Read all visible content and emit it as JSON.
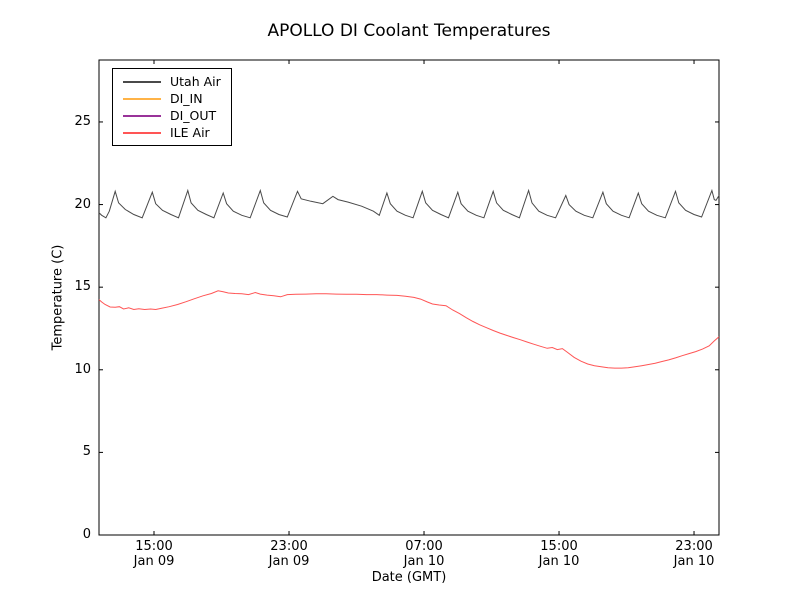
{
  "chart_data": {
    "type": "line",
    "title": "APOLLO DI Coolant Temperatures",
    "xlabel": "Date (GMT)",
    "ylabel": "Temperature (C)",
    "x_unit": "hours since Jan 09 00:00 GMT",
    "xlim": [
      11.74,
      48.48
    ],
    "ylim": [
      0,
      28.75
    ],
    "yticks": [
      0,
      5,
      10,
      15,
      20,
      25
    ],
    "xticks": [
      {
        "value": 15,
        "time": "15:00",
        "date": "Jan 09"
      },
      {
        "value": 23,
        "time": "23:00",
        "date": "Jan 09"
      },
      {
        "value": 31,
        "time": "07:00",
        "date": "Jan 10"
      },
      {
        "value": 39,
        "time": "15:00",
        "date": "Jan 10"
      },
      {
        "value": 47,
        "time": "23:00",
        "date": "Jan 10"
      }
    ],
    "grid": false,
    "legend_position": "upper-left",
    "legend": [
      {
        "label": "Utah Air",
        "color": "#4a4a4a"
      },
      {
        "label": "DI_IN",
        "color": "#ffb347"
      },
      {
        "label": "DI_OUT",
        "color": "#993399"
      },
      {
        "label": "ILE Air",
        "color": "#ff5555"
      }
    ],
    "series": [
      {
        "name": "Utah Air",
        "color": "#4a4a4a",
        "points": [
          [
            11.74,
            19.5
          ],
          [
            11.9,
            19.35
          ],
          [
            12.15,
            19.2
          ],
          [
            12.35,
            19.6
          ],
          [
            12.7,
            20.8
          ],
          [
            12.9,
            20.1
          ],
          [
            13.3,
            19.7
          ],
          [
            13.8,
            19.4
          ],
          [
            14.3,
            19.2
          ],
          [
            14.9,
            20.75
          ],
          [
            15.1,
            20.05
          ],
          [
            15.5,
            19.65
          ],
          [
            16.0,
            19.4
          ],
          [
            16.45,
            19.2
          ],
          [
            17.0,
            20.85
          ],
          [
            17.2,
            20.1
          ],
          [
            17.6,
            19.65
          ],
          [
            18.1,
            19.4
          ],
          [
            18.55,
            19.2
          ],
          [
            19.1,
            20.7
          ],
          [
            19.3,
            20.05
          ],
          [
            19.7,
            19.6
          ],
          [
            20.2,
            19.35
          ],
          [
            20.7,
            19.2
          ],
          [
            21.3,
            20.85
          ],
          [
            21.5,
            20.1
          ],
          [
            21.9,
            19.65
          ],
          [
            22.4,
            19.4
          ],
          [
            22.9,
            19.25
          ],
          [
            23.5,
            20.8
          ],
          [
            23.72,
            20.35
          ],
          [
            24.3,
            20.2
          ],
          [
            25.0,
            20.05
          ],
          [
            25.6,
            20.5
          ],
          [
            25.9,
            20.3
          ],
          [
            26.5,
            20.15
          ],
          [
            27.3,
            19.9
          ],
          [
            28.0,
            19.6
          ],
          [
            28.35,
            19.35
          ],
          [
            28.8,
            20.7
          ],
          [
            29.0,
            20.05
          ],
          [
            29.4,
            19.6
          ],
          [
            29.9,
            19.35
          ],
          [
            30.35,
            19.2
          ],
          [
            30.9,
            20.8
          ],
          [
            31.1,
            20.1
          ],
          [
            31.5,
            19.65
          ],
          [
            32.0,
            19.4
          ],
          [
            32.45,
            19.2
          ],
          [
            33.0,
            20.75
          ],
          [
            33.2,
            20.05
          ],
          [
            33.6,
            19.6
          ],
          [
            34.1,
            19.35
          ],
          [
            34.55,
            19.2
          ],
          [
            35.1,
            20.8
          ],
          [
            35.3,
            20.1
          ],
          [
            35.7,
            19.65
          ],
          [
            36.2,
            19.4
          ],
          [
            36.65,
            19.2
          ],
          [
            37.2,
            20.85
          ],
          [
            37.4,
            20.1
          ],
          [
            37.8,
            19.6
          ],
          [
            38.3,
            19.35
          ],
          [
            38.8,
            19.2
          ],
          [
            39.4,
            20.55
          ],
          [
            39.6,
            20.0
          ],
          [
            40.0,
            19.6
          ],
          [
            40.5,
            19.35
          ],
          [
            41.0,
            19.2
          ],
          [
            41.6,
            20.75
          ],
          [
            41.8,
            20.05
          ],
          [
            42.2,
            19.6
          ],
          [
            42.7,
            19.35
          ],
          [
            43.15,
            19.2
          ],
          [
            43.7,
            20.7
          ],
          [
            43.9,
            20.05
          ],
          [
            44.3,
            19.6
          ],
          [
            44.8,
            19.35
          ],
          [
            45.3,
            19.2
          ],
          [
            45.9,
            20.8
          ],
          [
            46.1,
            20.1
          ],
          [
            46.5,
            19.65
          ],
          [
            47.0,
            19.4
          ],
          [
            47.45,
            19.25
          ],
          [
            48.06,
            20.85
          ],
          [
            48.2,
            20.3
          ],
          [
            48.3,
            20.25
          ],
          [
            48.48,
            20.55
          ]
        ]
      },
      {
        "name": "DI_IN",
        "color": "#ffb347",
        "points": []
      },
      {
        "name": "DI_OUT",
        "color": "#993399",
        "points": []
      },
      {
        "name": "ILE Air",
        "color": "#ff5555",
        "points": [
          [
            11.74,
            14.25
          ],
          [
            11.9,
            14.1
          ],
          [
            12.1,
            13.95
          ],
          [
            12.4,
            13.8
          ],
          [
            12.7,
            13.78
          ],
          [
            12.95,
            13.82
          ],
          [
            13.2,
            13.68
          ],
          [
            13.5,
            13.75
          ],
          [
            13.8,
            13.65
          ],
          [
            14.1,
            13.7
          ],
          [
            14.45,
            13.65
          ],
          [
            14.8,
            13.68
          ],
          [
            15.1,
            13.65
          ],
          [
            15.45,
            13.72
          ],
          [
            15.9,
            13.82
          ],
          [
            16.4,
            13.95
          ],
          [
            16.9,
            14.12
          ],
          [
            17.4,
            14.3
          ],
          [
            17.9,
            14.48
          ],
          [
            18.4,
            14.62
          ],
          [
            18.8,
            14.78
          ],
          [
            19.1,
            14.72
          ],
          [
            19.4,
            14.65
          ],
          [
            19.8,
            14.62
          ],
          [
            20.2,
            14.6
          ],
          [
            20.6,
            14.55
          ],
          [
            21.0,
            14.68
          ],
          [
            21.3,
            14.58
          ],
          [
            21.7,
            14.52
          ],
          [
            22.1,
            14.48
          ],
          [
            22.5,
            14.42
          ],
          [
            22.9,
            14.55
          ],
          [
            23.4,
            14.57
          ],
          [
            24.0,
            14.58
          ],
          [
            24.6,
            14.6
          ],
          [
            25.2,
            14.6
          ],
          [
            25.8,
            14.58
          ],
          [
            26.4,
            14.57
          ],
          [
            27.0,
            14.57
          ],
          [
            27.6,
            14.55
          ],
          [
            28.2,
            14.55
          ],
          [
            28.8,
            14.52
          ],
          [
            29.4,
            14.5
          ],
          [
            29.9,
            14.45
          ],
          [
            30.4,
            14.38
          ],
          [
            30.8,
            14.28
          ],
          [
            31.2,
            14.1
          ],
          [
            31.5,
            13.98
          ],
          [
            31.9,
            13.92
          ],
          [
            32.3,
            13.88
          ],
          [
            32.7,
            13.62
          ],
          [
            33.1,
            13.4
          ],
          [
            33.5,
            13.15
          ],
          [
            33.9,
            12.92
          ],
          [
            34.3,
            12.72
          ],
          [
            34.7,
            12.55
          ],
          [
            35.1,
            12.38
          ],
          [
            35.5,
            12.22
          ],
          [
            35.9,
            12.08
          ],
          [
            36.3,
            11.95
          ],
          [
            36.7,
            11.82
          ],
          [
            37.1,
            11.68
          ],
          [
            37.5,
            11.55
          ],
          [
            37.9,
            11.42
          ],
          [
            38.3,
            11.3
          ],
          [
            38.6,
            11.35
          ],
          [
            38.9,
            11.22
          ],
          [
            39.2,
            11.28
          ],
          [
            39.5,
            11.05
          ],
          [
            39.9,
            10.75
          ],
          [
            40.3,
            10.52
          ],
          [
            40.7,
            10.35
          ],
          [
            41.1,
            10.25
          ],
          [
            41.5,
            10.18
          ],
          [
            41.9,
            10.12
          ],
          [
            42.3,
            10.1
          ],
          [
            42.7,
            10.1
          ],
          [
            43.1,
            10.12
          ],
          [
            43.5,
            10.18
          ],
          [
            43.9,
            10.25
          ],
          [
            44.3,
            10.32
          ],
          [
            44.7,
            10.4
          ],
          [
            45.1,
            10.5
          ],
          [
            45.5,
            10.6
          ],
          [
            45.9,
            10.72
          ],
          [
            46.3,
            10.85
          ],
          [
            46.7,
            10.98
          ],
          [
            47.1,
            11.1
          ],
          [
            47.5,
            11.25
          ],
          [
            47.9,
            11.45
          ],
          [
            48.2,
            11.75
          ],
          [
            48.48,
            12.0
          ]
        ]
      }
    ]
  }
}
